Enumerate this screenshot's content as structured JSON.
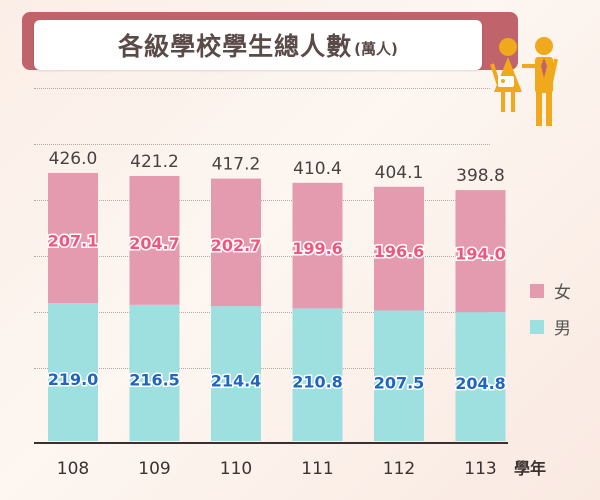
{
  "header": {
    "title": "各級學校學生總人數",
    "unit": "(萬人)"
  },
  "legend": {
    "female_label": "女",
    "male_label": "男"
  },
  "axis": {
    "x_unit_label": "學年"
  },
  "colors": {
    "female": "#e49bb0",
    "male": "#9edfe0",
    "female_text": "#f0577f",
    "male_text": "#1f65c2",
    "total_text": "#4a4040",
    "tick_text": "#3c3232",
    "title_bar": "#c0636a"
  },
  "chart_data": {
    "type": "bar",
    "stacked": true,
    "categories": [
      "108",
      "109",
      "110",
      "111",
      "112",
      "113"
    ],
    "series": [
      {
        "name": "男",
        "values": [
          219.0,
          216.5,
          214.4,
          210.8,
          207.5,
          204.8
        ]
      },
      {
        "name": "女",
        "values": [
          207.1,
          204.7,
          202.7,
          199.6,
          196.6,
          194.0
        ]
      }
    ],
    "totals": [
      426.0,
      421.2,
      417.2,
      410.4,
      404.1,
      398.8
    ],
    "title": "各級學校學生總人數(萬人)",
    "xlabel": "學年",
    "ylabel": "",
    "ylim": [
      0,
      426
    ],
    "legend_position": "right"
  }
}
